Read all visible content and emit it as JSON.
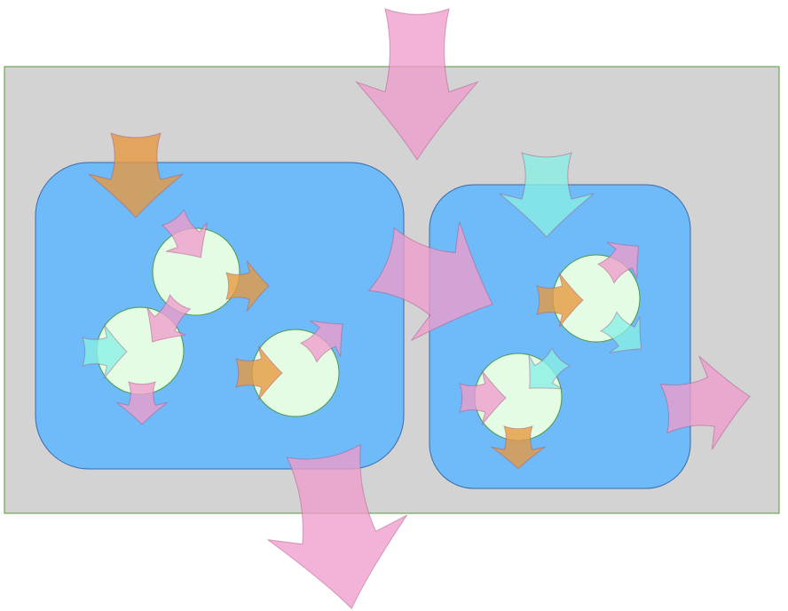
{
  "diagram": {
    "colors": {
      "background": "#ffffff",
      "outer_fill": "#d3d3d3",
      "group_fill": "#6fbaf8",
      "node_fill": "#e4fbe4",
      "arrow_pink": "#f09ccc",
      "arrow_orange": "#e8983e",
      "arrow_cyan": "#88f0e4"
    },
    "groups": [
      "left-group",
      "right-group"
    ],
    "nodes": [
      "node-1",
      "node-2",
      "node-3",
      "node-4",
      "node-5"
    ]
  }
}
